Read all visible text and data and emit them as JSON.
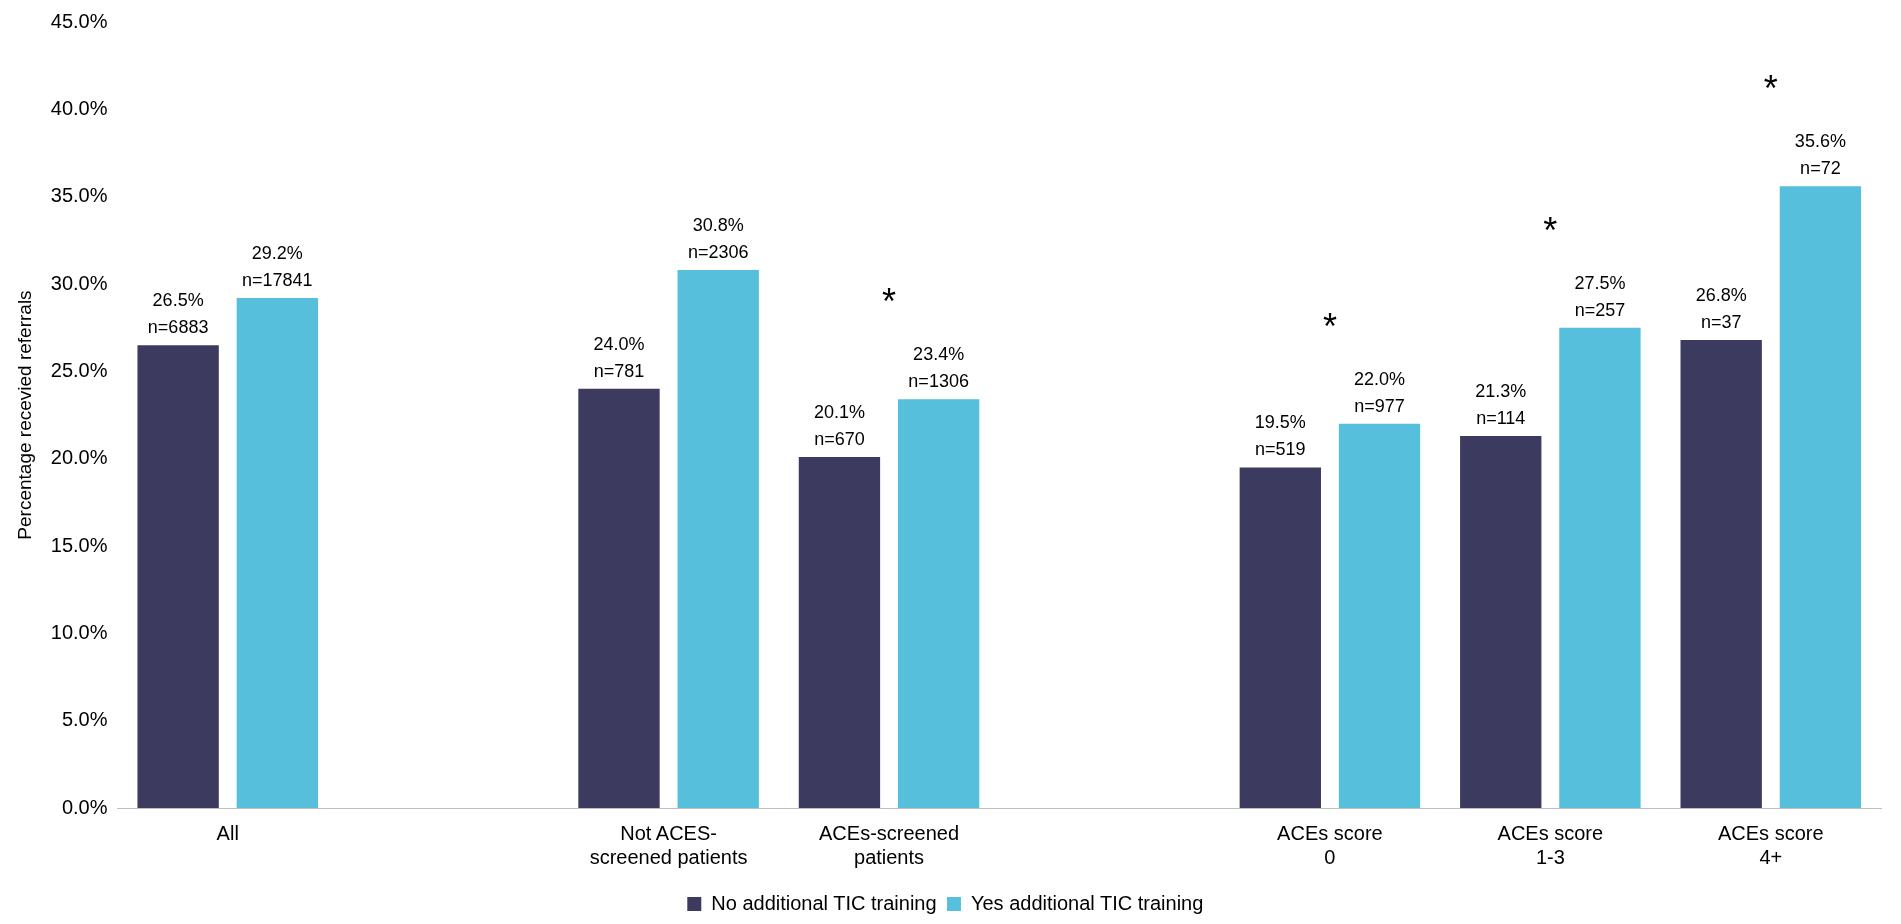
{
  "chart_data": {
    "type": "bar",
    "ylabel": "Percentage recevied referrals",
    "categories": [
      "All",
      null,
      "Not ACES-\nscreened patients",
      "ACEs-screened\npatients",
      null,
      "ACEs score\n0",
      "ACEs score\n1-3",
      "ACEs score\n4+"
    ],
    "series": [
      {
        "name": "No additional TIC training",
        "color": "#3c3a5e",
        "values": [
          26.5,
          null,
          24.0,
          20.1,
          null,
          19.5,
          21.3,
          26.8
        ],
        "value_labels": [
          "26.5%\nn=6883",
          null,
          "24.0%\nn=781",
          "20.1%\nn=670",
          null,
          "19.5%\nn=519",
          "21.3%\nn=114",
          "26.8%\nn=37"
        ]
      },
      {
        "name": "Yes additional TIC training",
        "color": "#56c0dc",
        "values": [
          29.2,
          null,
          30.8,
          23.4,
          null,
          22.0,
          27.5,
          35.6
        ],
        "value_labels": [
          "29.2%\nn=17841",
          null,
          "30.8%\nn=2306",
          "23.4%\nn=1306",
          null,
          "22.0%\nn=977",
          "27.5%\nn=257",
          "35.6%\nn=72"
        ]
      }
    ],
    "ylim": [
      0,
      45
    ],
    "yticks": [
      {
        "value": 0,
        "label": "0.0%"
      },
      {
        "value": 5,
        "label": "5.0%"
      },
      {
        "value": 10,
        "label": "10.0%"
      },
      {
        "value": 15,
        "label": "15.0%"
      },
      {
        "value": 20,
        "label": "20.0%"
      },
      {
        "value": 25,
        "label": "25.0%"
      },
      {
        "value": 30,
        "label": "30.0%"
      },
      {
        "value": 35,
        "label": "35.0%"
      },
      {
        "value": 40,
        "label": "40.0%"
      },
      {
        "value": 45,
        "label": "45.0%"
      }
    ],
    "annotations": [
      "*",
      "*",
      "*",
      "*"
    ],
    "grid": false,
    "legend": "bottom"
  }
}
